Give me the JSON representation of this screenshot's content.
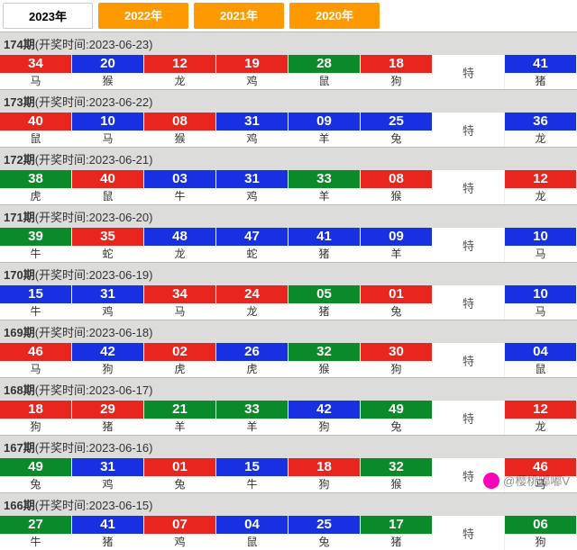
{
  "tabs": [
    {
      "label": "2023年",
      "active": true
    },
    {
      "label": "2022年",
      "active": false
    },
    {
      "label": "2021年",
      "active": false
    },
    {
      "label": "2020年",
      "active": false
    }
  ],
  "te_label": "特",
  "watermark": "@樱桃嘟嘟V",
  "colors": {
    "red": "#e8251e",
    "blue": "#1731e0",
    "green": "#0a8a28",
    "tab_inactive": "#ff9900"
  },
  "periods": [
    {
      "no": "174",
      "date": "2023-06-23",
      "balls": [
        {
          "n": "34",
          "z": "马",
          "c": "red"
        },
        {
          "n": "20",
          "z": "猴",
          "c": "blue"
        },
        {
          "n": "12",
          "z": "龙",
          "c": "red"
        },
        {
          "n": "19",
          "z": "鸡",
          "c": "red"
        },
        {
          "n": "28",
          "z": "鼠",
          "c": "green"
        },
        {
          "n": "18",
          "z": "狗",
          "c": "red"
        }
      ],
      "special": {
        "n": "41",
        "z": "猪",
        "c": "blue"
      }
    },
    {
      "no": "173",
      "date": "2023-06-22",
      "balls": [
        {
          "n": "40",
          "z": "鼠",
          "c": "red"
        },
        {
          "n": "10",
          "z": "马",
          "c": "blue"
        },
        {
          "n": "08",
          "z": "猴",
          "c": "red"
        },
        {
          "n": "31",
          "z": "鸡",
          "c": "blue"
        },
        {
          "n": "09",
          "z": "羊",
          "c": "blue"
        },
        {
          "n": "25",
          "z": "兔",
          "c": "blue"
        }
      ],
      "special": {
        "n": "36",
        "z": "龙",
        "c": "blue"
      }
    },
    {
      "no": "172",
      "date": "2023-06-21",
      "balls": [
        {
          "n": "38",
          "z": "虎",
          "c": "green"
        },
        {
          "n": "40",
          "z": "鼠",
          "c": "red"
        },
        {
          "n": "03",
          "z": "牛",
          "c": "blue"
        },
        {
          "n": "31",
          "z": "鸡",
          "c": "blue"
        },
        {
          "n": "33",
          "z": "羊",
          "c": "green"
        },
        {
          "n": "08",
          "z": "猴",
          "c": "red"
        }
      ],
      "special": {
        "n": "12",
        "z": "龙",
        "c": "red"
      }
    },
    {
      "no": "171",
      "date": "2023-06-20",
      "balls": [
        {
          "n": "39",
          "z": "牛",
          "c": "green"
        },
        {
          "n": "35",
          "z": "蛇",
          "c": "red"
        },
        {
          "n": "48",
          "z": "龙",
          "c": "blue"
        },
        {
          "n": "47",
          "z": "蛇",
          "c": "blue"
        },
        {
          "n": "41",
          "z": "猪",
          "c": "blue"
        },
        {
          "n": "09",
          "z": "羊",
          "c": "blue"
        }
      ],
      "special": {
        "n": "10",
        "z": "马",
        "c": "blue"
      }
    },
    {
      "no": "170",
      "date": "2023-06-19",
      "balls": [
        {
          "n": "15",
          "z": "牛",
          "c": "blue"
        },
        {
          "n": "31",
          "z": "鸡",
          "c": "blue"
        },
        {
          "n": "34",
          "z": "马",
          "c": "red"
        },
        {
          "n": "24",
          "z": "龙",
          "c": "red"
        },
        {
          "n": "05",
          "z": "猪",
          "c": "green"
        },
        {
          "n": "01",
          "z": "兔",
          "c": "red"
        }
      ],
      "special": {
        "n": "10",
        "z": "马",
        "c": "blue"
      }
    },
    {
      "no": "169",
      "date": "2023-06-18",
      "balls": [
        {
          "n": "46",
          "z": "马",
          "c": "red"
        },
        {
          "n": "42",
          "z": "狗",
          "c": "blue"
        },
        {
          "n": "02",
          "z": "虎",
          "c": "red"
        },
        {
          "n": "26",
          "z": "虎",
          "c": "blue"
        },
        {
          "n": "32",
          "z": "猴",
          "c": "green"
        },
        {
          "n": "30",
          "z": "狗",
          "c": "red"
        }
      ],
      "special": {
        "n": "04",
        "z": "鼠",
        "c": "blue"
      }
    },
    {
      "no": "168",
      "date": "2023-06-17",
      "balls": [
        {
          "n": "18",
          "z": "狗",
          "c": "red"
        },
        {
          "n": "29",
          "z": "猪",
          "c": "red"
        },
        {
          "n": "21",
          "z": "羊",
          "c": "green"
        },
        {
          "n": "33",
          "z": "羊",
          "c": "green"
        },
        {
          "n": "42",
          "z": "狗",
          "c": "blue"
        },
        {
          "n": "49",
          "z": "兔",
          "c": "green"
        }
      ],
      "special": {
        "n": "12",
        "z": "龙",
        "c": "red"
      }
    },
    {
      "no": "167",
      "date": "2023-06-16",
      "balls": [
        {
          "n": "49",
          "z": "兔",
          "c": "green"
        },
        {
          "n": "31",
          "z": "鸡",
          "c": "blue"
        },
        {
          "n": "01",
          "z": "兔",
          "c": "red"
        },
        {
          "n": "15",
          "z": "牛",
          "c": "blue"
        },
        {
          "n": "18",
          "z": "狗",
          "c": "red"
        },
        {
          "n": "32",
          "z": "猴",
          "c": "green"
        }
      ],
      "special": {
        "n": "46",
        "z": "马",
        "c": "red"
      }
    },
    {
      "no": "166",
      "date": "2023-06-15",
      "balls": [
        {
          "n": "27",
          "z": "牛",
          "c": "green"
        },
        {
          "n": "41",
          "z": "猪",
          "c": "blue"
        },
        {
          "n": "07",
          "z": "鸡",
          "c": "red"
        },
        {
          "n": "04",
          "z": "鼠",
          "c": "blue"
        },
        {
          "n": "25",
          "z": "兔",
          "c": "blue"
        },
        {
          "n": "17",
          "z": "猪",
          "c": "green"
        }
      ],
      "special": {
        "n": "06",
        "z": "狗",
        "c": "green"
      }
    }
  ]
}
